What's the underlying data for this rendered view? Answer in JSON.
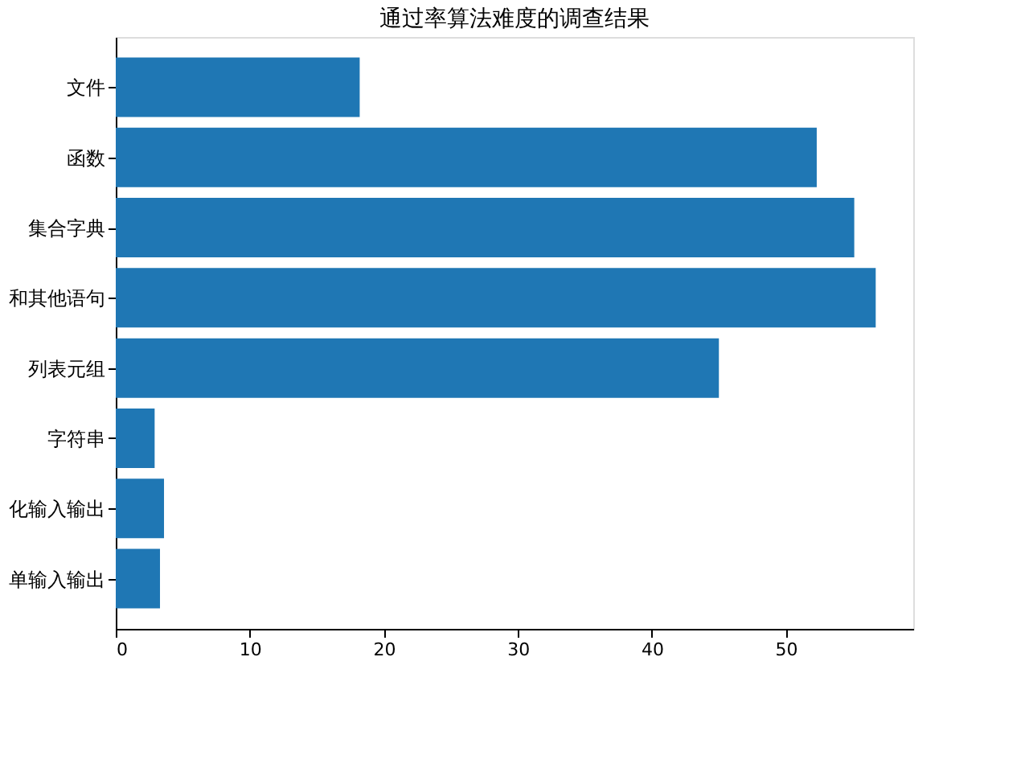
{
  "chart_data": {
    "type": "bar",
    "orientation": "horizontal",
    "title": "通过率算法难度的调查结果",
    "categories": [
      "文件",
      "函数",
      "集合字典",
      "和其他语句",
      "列表元组",
      "字符串",
      "化输入输出",
      "单输入输出"
    ],
    "values": [
      18.2,
      52.3,
      55.1,
      56.7,
      45.0,
      2.9,
      3.6,
      3.3
    ],
    "color": "#1f77b4",
    "xlim": [
      0,
      59.5
    ],
    "xticks": [
      0,
      10,
      20,
      30,
      40,
      50
    ],
    "grid": false
  }
}
